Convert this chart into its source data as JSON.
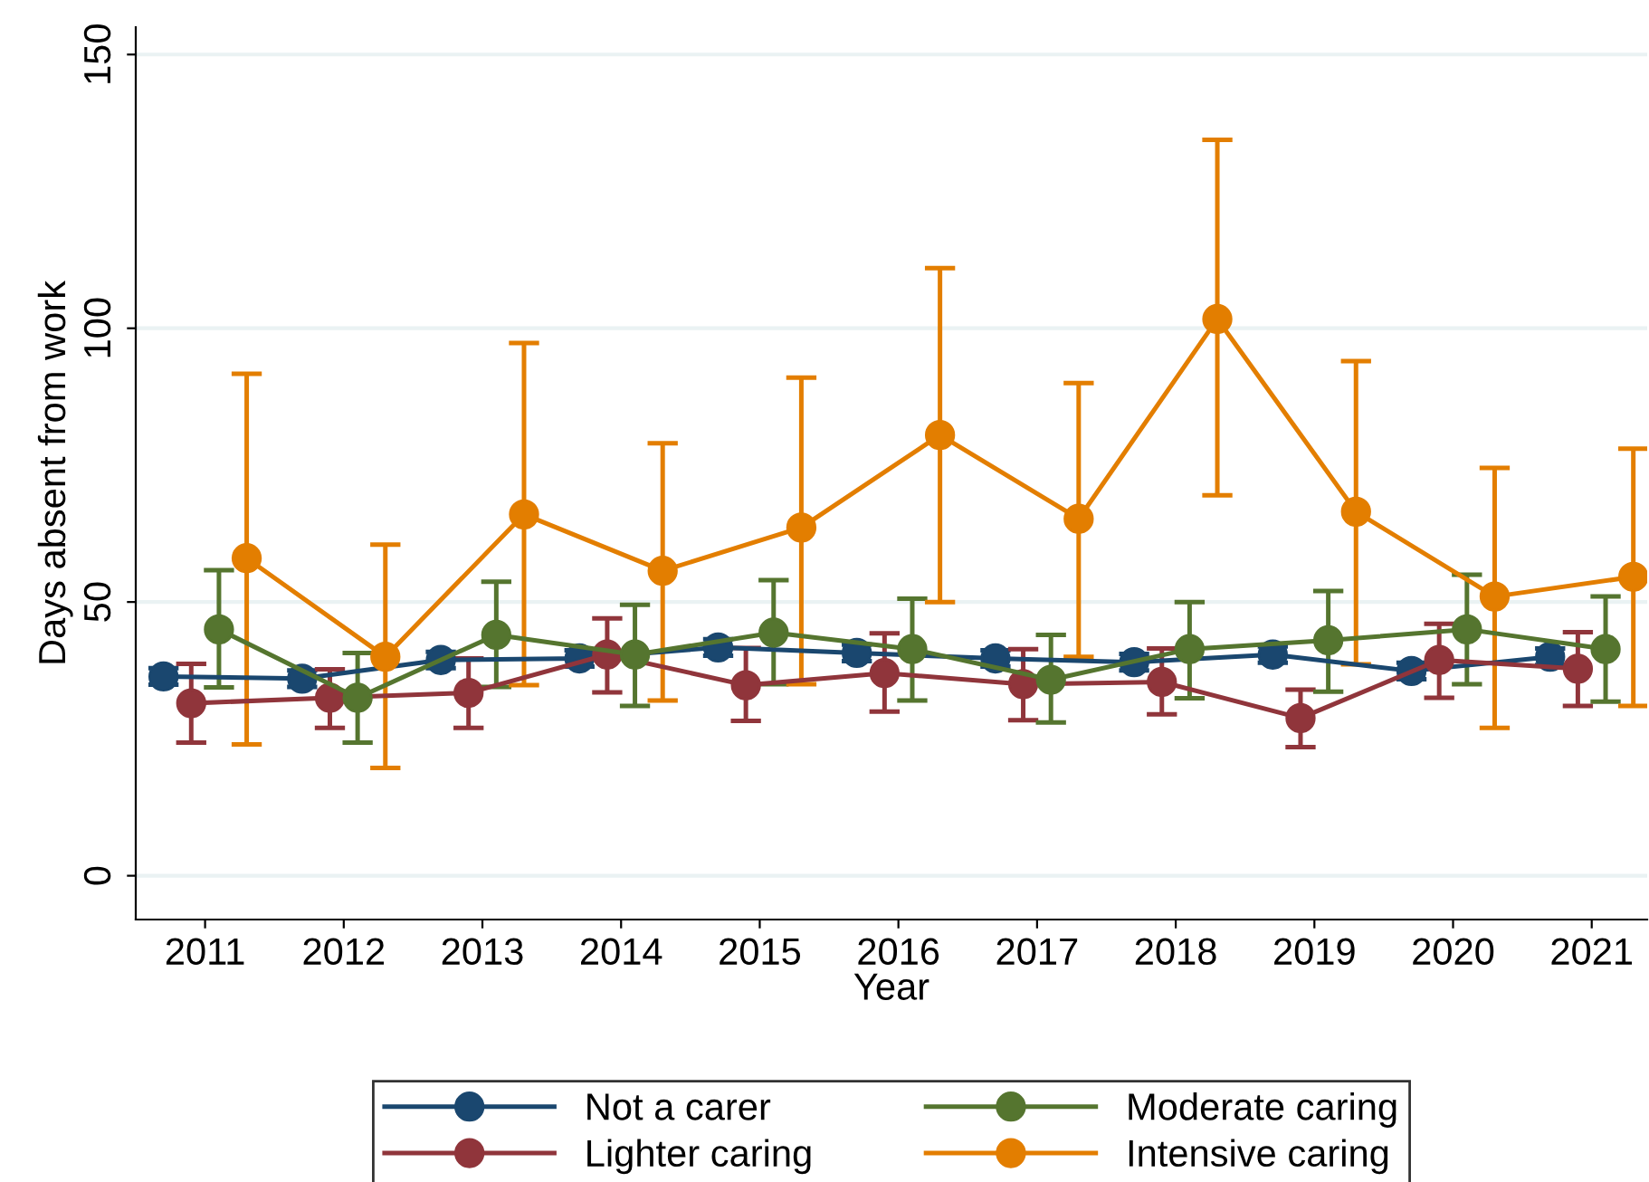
{
  "chart_data": {
    "type": "line",
    "xlabel": "Year",
    "ylabel": "Days absent from work",
    "xlim": [
      2010.5,
      2021.4
    ],
    "xticks": [
      2011,
      2012,
      2013,
      2014,
      2015,
      2016,
      2017,
      2018,
      2019,
      2020,
      2021
    ],
    "ylim": [
      -8,
      155
    ],
    "yticks": [
      0,
      50,
      100,
      150
    ],
    "grid": "y",
    "legend": "bottom",
    "marker": "circle",
    "series": [
      {
        "name": "Not a carer",
        "color": "#1a476f",
        "x": [
          2010.7,
          2011.7,
          2012.7,
          2013.7,
          2014.7,
          2015.7,
          2016.7,
          2017.7,
          2018.7,
          2019.7,
          2020.7
        ],
        "values": [
          36.4,
          36,
          39.4,
          39.7,
          41.7,
          40.7,
          39.7,
          39,
          40.4,
          37.4,
          40
        ],
        "errors": [
          1.5,
          1.5,
          1.5,
          1.5,
          1.5,
          1.5,
          1.5,
          1.5,
          1.5,
          1.5,
          1.5
        ]
      },
      {
        "name": "Lighter caring",
        "color": "#90353b",
        "x": [
          2010.9,
          2011.9,
          2012.9,
          2013.9,
          2014.9,
          2015.9,
          2016.9,
          2017.9,
          2018.9,
          2019.9,
          2020.9
        ],
        "values": [
          31.5,
          32.5,
          33.4,
          40.4,
          34.8,
          37,
          35,
          35.4,
          28.8,
          39.4,
          37.8
        ],
        "errors": [
          [
            24.3,
            38.7
          ],
          [
            27,
            37.7
          ],
          [
            27,
            39.7
          ],
          [
            33.5,
            47
          ],
          [
            28.3,
            41.6
          ],
          [
            30,
            44.3
          ],
          [
            28.4,
            41.4
          ],
          [
            29.5,
            41.5
          ],
          [
            23.5,
            34
          ],
          [
            32.5,
            46
          ],
          [
            31,
            44.5
          ]
        ]
      },
      {
        "name": "Moderate caring",
        "color": "#55752f",
        "x": [
          2011.1,
          2012.1,
          2013.1,
          2014.1,
          2015.1,
          2016.1,
          2017.1,
          2018.1,
          2019.1,
          2020.1,
          2021.1
        ],
        "values": [
          45,
          32.5,
          44,
          40.4,
          44.4,
          41.4,
          35.8,
          41.4,
          43,
          45,
          41.4
        ],
        "errors": [
          [
            34.4,
            55.8
          ],
          [
            24.3,
            40.7
          ],
          [
            34.5,
            53.7
          ],
          [
            31,
            49.5
          ],
          [
            35,
            54
          ],
          [
            32,
            50.6
          ],
          [
            28,
            44
          ],
          [
            32.4,
            50
          ],
          [
            33.6,
            52
          ],
          [
            35,
            55
          ],
          [
            31.8,
            51
          ]
        ]
      },
      {
        "name": "Intensive caring",
        "color": "#e37e00",
        "x": [
          2011.3,
          2012.3,
          2013.3,
          2014.3,
          2015.3,
          2016.3,
          2017.3,
          2018.3,
          2019.3,
          2020.3,
          2021.3
        ],
        "values": [
          58,
          40,
          66,
          55.7,
          63.6,
          80.5,
          65.2,
          101.7,
          66.5,
          51,
          54.6
        ],
        "errors": [
          [
            24,
            91.7
          ],
          [
            19.7,
            60.5
          ],
          [
            34.8,
            97.3
          ],
          [
            32,
            79
          ],
          [
            35,
            91
          ],
          [
            50,
            111
          ],
          [
            40,
            90
          ],
          [
            69.5,
            134.4
          ],
          [
            38.6,
            94
          ],
          [
            27,
            74.5
          ],
          [
            31,
            78
          ]
        ]
      }
    ]
  }
}
